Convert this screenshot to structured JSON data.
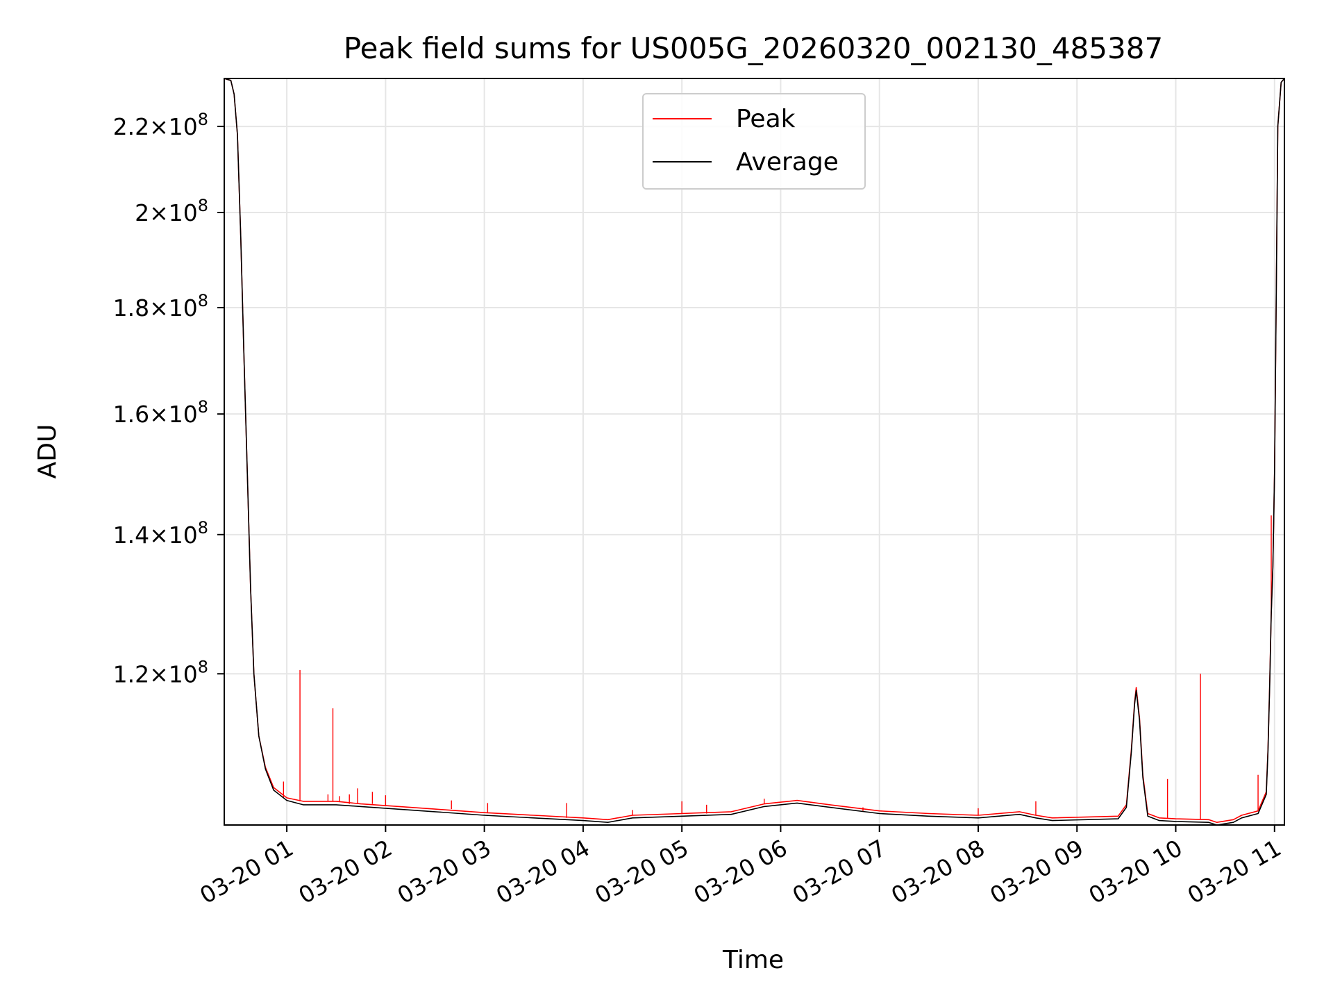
{
  "chart_data": {
    "type": "line",
    "title": "Peak field sums for US005G_20260320_002130_485387",
    "xlabel": "Time",
    "ylabel": "ADU",
    "y_scale": "log",
    "xlim": [
      "2026-03-20 00:22",
      "2026-03-20 11:00"
    ],
    "ylim": [
      101500000,
      232000000
    ],
    "grid": true,
    "legend_position": "top-center",
    "x_ticks": [
      {
        "value": "2026-03-20 01:00",
        "label": "03-20 01"
      },
      {
        "value": "2026-03-20 02:00",
        "label": "03-20 02"
      },
      {
        "value": "2026-03-20 03:00",
        "label": "03-20 03"
      },
      {
        "value": "2026-03-20 04:00",
        "label": "03-20 04"
      },
      {
        "value": "2026-03-20 05:00",
        "label": "03-20 05"
      },
      {
        "value": "2026-03-20 06:00",
        "label": "03-20 06"
      },
      {
        "value": "2026-03-20 07:00",
        "label": "03-20 07"
      },
      {
        "value": "2026-03-20 08:00",
        "label": "03-20 08"
      },
      {
        "value": "2026-03-20 09:00",
        "label": "03-20 09"
      },
      {
        "value": "2026-03-20 10:00",
        "label": "03-20 10"
      },
      {
        "value": "2026-03-20 11:00",
        "label": "03-20 11"
      }
    ],
    "y_ticks": [
      {
        "value": 120000000,
        "mantissa": "1.2",
        "exponent": "8"
      },
      {
        "value": 140000000,
        "mantissa": "1.4",
        "exponent": "8"
      },
      {
        "value": 160000000,
        "mantissa": "1.6",
        "exponent": "8"
      },
      {
        "value": 180000000,
        "mantissa": "1.8",
        "exponent": "8"
      },
      {
        "value": 200000000,
        "mantissa": "2",
        "exponent": "8"
      },
      {
        "value": 220000000,
        "mantissa": "2.2",
        "exponent": "8"
      }
    ],
    "tick_times_label": "×10",
    "series": [
      {
        "name": "Average",
        "color": "#000000",
        "points": [
          [
            "2026-03-20 00:22",
            232000000
          ],
          [
            "2026-03-20 00:26",
            231500000
          ],
          [
            "2026-03-20 00:28",
            228000000
          ],
          [
            "2026-03-20 00:30",
            218000000
          ],
          [
            "2026-03-20 00:32",
            195000000
          ],
          [
            "2026-03-20 00:34",
            170000000
          ],
          [
            "2026-03-20 00:36",
            150000000
          ],
          [
            "2026-03-20 00:38",
            132000000
          ],
          [
            "2026-03-20 00:40",
            120000000
          ],
          [
            "2026-03-20 00:43",
            112000000
          ],
          [
            "2026-03-20 00:47",
            108000000
          ],
          [
            "2026-03-20 00:52",
            105500000
          ],
          [
            "2026-03-20 01:00",
            104300000
          ],
          [
            "2026-03-20 01:10",
            103800000
          ],
          [
            "2026-03-20 01:30",
            103800000
          ],
          [
            "2026-03-20 01:45",
            103600000
          ],
          [
            "2026-03-20 02:00",
            103400000
          ],
          [
            "2026-03-20 02:30",
            103000000
          ],
          [
            "2026-03-20 03:00",
            102600000
          ],
          [
            "2026-03-20 03:30",
            102300000
          ],
          [
            "2026-03-20 04:00",
            102000000
          ],
          [
            "2026-03-20 04:15",
            101800000
          ],
          [
            "2026-03-20 04:30",
            102300000
          ],
          [
            "2026-03-20 05:00",
            102500000
          ],
          [
            "2026-03-20 05:30",
            102700000
          ],
          [
            "2026-03-20 05:50",
            103600000
          ],
          [
            "2026-03-20 06:10",
            104000000
          ],
          [
            "2026-03-20 06:30",
            103500000
          ],
          [
            "2026-03-20 07:00",
            102800000
          ],
          [
            "2026-03-20 07:30",
            102500000
          ],
          [
            "2026-03-20 08:00",
            102300000
          ],
          [
            "2026-03-20 08:25",
            102700000
          ],
          [
            "2026-03-20 08:35",
            102300000
          ],
          [
            "2026-03-20 08:45",
            102000000
          ],
          [
            "2026-03-20 09:25",
            102200000
          ],
          [
            "2026-03-20 09:30",
            103500000
          ],
          [
            "2026-03-20 09:33",
            110000000
          ],
          [
            "2026-03-20 09:35",
            116000000
          ],
          [
            "2026-03-20 09:36",
            117800000
          ],
          [
            "2026-03-20 09:38",
            114000000
          ],
          [
            "2026-03-20 09:40",
            107000000
          ],
          [
            "2026-03-20 09:43",
            102500000
          ],
          [
            "2026-03-20 09:50",
            102000000
          ],
          [
            "2026-03-20 10:00",
            101900000
          ],
          [
            "2026-03-20 10:20",
            101800000
          ],
          [
            "2026-03-20 10:25",
            101500000
          ],
          [
            "2026-03-20 10:35",
            101800000
          ],
          [
            "2026-03-20 10:40",
            102300000
          ],
          [
            "2026-03-20 10:50",
            102800000
          ],
          [
            "2026-03-20 10:55",
            105000000
          ],
          [
            "2026-03-20 10:56",
            110000000
          ],
          [
            "2026-03-20 10:57",
            118000000
          ],
          [
            "2026-03-20 10:58",
            128000000
          ],
          [
            "2026-03-20 10:59",
            135000000
          ],
          [
            "2026-03-20 11:00",
            150000000
          ],
          [
            "2026-03-20 11:01",
            180000000
          ],
          [
            "2026-03-20 11:02",
            220000000
          ],
          [
            "2026-03-20 11:04",
            231000000
          ],
          [
            "2026-03-20 11:06",
            232000000
          ]
        ]
      },
      {
        "name": "Peak",
        "color": "#ff0000",
        "points": [
          [
            "2026-03-20 00:22",
            232000000
          ],
          [
            "2026-03-20 00:26",
            231500000
          ],
          [
            "2026-03-20 00:28",
            228000000
          ],
          [
            "2026-03-20 00:30",
            218000000
          ],
          [
            "2026-03-20 00:32",
            195000000
          ],
          [
            "2026-03-20 00:34",
            170000000
          ],
          [
            "2026-03-20 00:36",
            150000000
          ],
          [
            "2026-03-20 00:38",
            132000000
          ],
          [
            "2026-03-20 00:40",
            120000000
          ],
          [
            "2026-03-20 00:43",
            112000000
          ],
          [
            "2026-03-20 00:47",
            108200000
          ],
          [
            "2026-03-20 00:52",
            105800000
          ],
          [
            "2026-03-20 01:00",
            104600000
          ],
          [
            "2026-03-20 01:10",
            104200000
          ],
          [
            "2026-03-20 01:30",
            104200000
          ],
          [
            "2026-03-20 01:45",
            103900000
          ],
          [
            "2026-03-20 02:00",
            103700000
          ],
          [
            "2026-03-20 02:30",
            103300000
          ],
          [
            "2026-03-20 03:00",
            102900000
          ],
          [
            "2026-03-20 03:30",
            102600000
          ],
          [
            "2026-03-20 04:00",
            102300000
          ],
          [
            "2026-03-20 04:15",
            102100000
          ],
          [
            "2026-03-20 04:30",
            102600000
          ],
          [
            "2026-03-20 05:00",
            102800000
          ],
          [
            "2026-03-20 05:30",
            103000000
          ],
          [
            "2026-03-20 05:50",
            103900000
          ],
          [
            "2026-03-20 06:10",
            104300000
          ],
          [
            "2026-03-20 06:30",
            103800000
          ],
          [
            "2026-03-20 07:00",
            103100000
          ],
          [
            "2026-03-20 07:30",
            102800000
          ],
          [
            "2026-03-20 08:00",
            102600000
          ],
          [
            "2026-03-20 08:25",
            103000000
          ],
          [
            "2026-03-20 08:35",
            102600000
          ],
          [
            "2026-03-20 08:45",
            102300000
          ],
          [
            "2026-03-20 09:25",
            102500000
          ],
          [
            "2026-03-20 09:30",
            103800000
          ],
          [
            "2026-03-20 09:33",
            110300000
          ],
          [
            "2026-03-20 09:35",
            116300000
          ],
          [
            "2026-03-20 09:36",
            118200000
          ],
          [
            "2026-03-20 09:38",
            114300000
          ],
          [
            "2026-03-20 09:40",
            107300000
          ],
          [
            "2026-03-20 09:43",
            102800000
          ],
          [
            "2026-03-20 09:50",
            102300000
          ],
          [
            "2026-03-20 10:00",
            102200000
          ],
          [
            "2026-03-20 10:20",
            102100000
          ],
          [
            "2026-03-20 10:25",
            101800000
          ],
          [
            "2026-03-20 10:35",
            102100000
          ],
          [
            "2026-03-20 10:40",
            102600000
          ],
          [
            "2026-03-20 10:50",
            103100000
          ],
          [
            "2026-03-20 10:55",
            105300000
          ],
          [
            "2026-03-20 10:56",
            110300000
          ],
          [
            "2026-03-20 10:57",
            118300000
          ],
          [
            "2026-03-20 10:58",
            128300000
          ],
          [
            "2026-03-20 10:59",
            135300000
          ],
          [
            "2026-03-20 11:00",
            150000000
          ],
          [
            "2026-03-20 11:01",
            180000000
          ],
          [
            "2026-03-20 11:02",
            220000000
          ],
          [
            "2026-03-20 11:04",
            231000000
          ],
          [
            "2026-03-20 11:06",
            232000000
          ]
        ],
        "spikes": [
          [
            "2026-03-20 00:58",
            106500000
          ],
          [
            "2026-03-20 01:08",
            120500000
          ],
          [
            "2026-03-20 01:25",
            105000000
          ],
          [
            "2026-03-20 01:28",
            115500000
          ],
          [
            "2026-03-20 01:32",
            104800000
          ],
          [
            "2026-03-20 01:38",
            105000000
          ],
          [
            "2026-03-20 01:43",
            105700000
          ],
          [
            "2026-03-20 01:52",
            105300000
          ],
          [
            "2026-03-20 02:00",
            104900000
          ],
          [
            "2026-03-20 02:40",
            104300000
          ],
          [
            "2026-03-20 03:02",
            104000000
          ],
          [
            "2026-03-20 03:50",
            104000000
          ],
          [
            "2026-03-20 04:30",
            103200000
          ],
          [
            "2026-03-20 05:00",
            104200000
          ],
          [
            "2026-03-20 05:15",
            103800000
          ],
          [
            "2026-03-20 05:50",
            104500000
          ],
          [
            "2026-03-20 06:50",
            103500000
          ],
          [
            "2026-03-20 08:00",
            103400000
          ],
          [
            "2026-03-20 08:35",
            104200000
          ],
          [
            "2026-03-20 09:55",
            106800000
          ],
          [
            "2026-03-20 10:15",
            120000000
          ],
          [
            "2026-03-20 10:50",
            107300000
          ],
          [
            "2026-03-20 10:58",
            143000000
          ]
        ]
      }
    ]
  }
}
